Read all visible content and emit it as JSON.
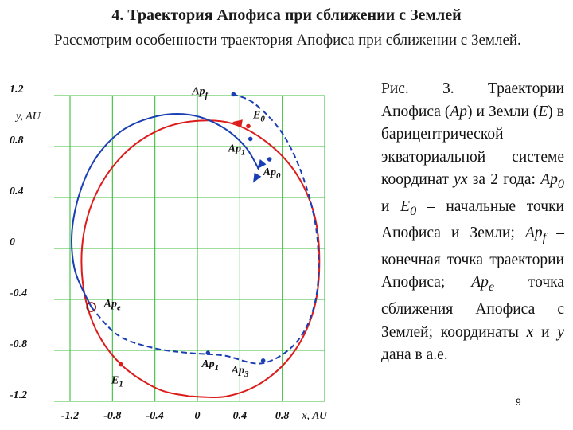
{
  "slide": {
    "title": "4. Траектория Апофиса при сближении с Землей",
    "subtitle": "Рассмотрим особенности траектория Апофиса при сближении с Землей.",
    "page_number": "9"
  },
  "caption": {
    "parts": [
      {
        "t": "Рис. 3. Траектории Апофиса ("
      },
      {
        "t": "Ap",
        "i": true
      },
      {
        "t": ") и Земли ("
      },
      {
        "t": "E",
        "i": true
      },
      {
        "t": ") в барицентрической экваториальной системе координат "
      },
      {
        "t": "yx",
        "i": true
      },
      {
        "t": " за 2 года: "
      },
      {
        "t": "Ap",
        "i": true
      },
      {
        "t": "0",
        "i": true,
        "sub": true
      },
      {
        "t": " и "
      },
      {
        "t": "E",
        "i": true
      },
      {
        "t": "0",
        "i": true,
        "sub": true
      },
      {
        "t": " – начальные точки Апофиса и Земли; "
      },
      {
        "t": "Ap",
        "i": true
      },
      {
        "t": "f",
        "i": true,
        "sub": true
      },
      {
        "t": " – конечная точка траектории Апофиса; "
      },
      {
        "t": "Ap",
        "i": true
      },
      {
        "t": "e",
        "i": true,
        "sub": true
      },
      {
        "t": " –точка сближения Апофиса с Землей; координаты "
      },
      {
        "t": "x",
        "i": true
      },
      {
        "t": " и "
      },
      {
        "t": "y",
        "i": true
      },
      {
        "t": " дана в а.е."
      }
    ]
  },
  "chart_data": {
    "type": "line",
    "xlabel": "x, AU",
    "ylabel": "y, AU",
    "xlim": [
      -1.2,
      1.2
    ],
    "ylim": [
      -1.2,
      1.2
    ],
    "grid": true,
    "x_ticks": [
      "-1.2",
      "-0.8",
      "-0.4",
      "0",
      "0.4",
      "0.8"
    ],
    "y_ticks": [
      "1.2",
      "0.8",
      "0.4",
      "0",
      "-0.4",
      "-0.8",
      "-1.2"
    ],
    "colors": {
      "earth": "#dd1c1c",
      "apophis": "#1a3fb5",
      "grid": "#3cbf3c"
    },
    "series": [
      {
        "name": "E",
        "style": "solid",
        "color": "#dd1c1c",
        "points": [
          [
            -0.08,
            -1.16
          ],
          [
            0.28,
            -1.16
          ],
          [
            0.63,
            -1.04
          ],
          [
            0.92,
            -0.8
          ],
          [
            1.1,
            -0.47
          ],
          [
            1.15,
            -0.1
          ],
          [
            1.1,
            0.27
          ],
          [
            0.93,
            0.59
          ],
          [
            0.66,
            0.83
          ],
          [
            0.33,
            0.98
          ],
          [
            -0.02,
            1.0
          ],
          [
            -0.36,
            0.93
          ],
          [
            -0.68,
            0.75
          ],
          [
            -0.93,
            0.47
          ],
          [
            -1.07,
            0.12
          ],
          [
            -1.08,
            -0.27
          ],
          [
            -0.96,
            -0.63
          ],
          [
            -0.72,
            -0.91
          ],
          [
            -0.38,
            -1.1
          ],
          [
            -0.08,
            -1.16
          ]
        ]
      },
      {
        "name": "Ap",
        "style": "solid",
        "color": "#1a3fb5",
        "points": [
          [
            0.58,
            0.62
          ],
          [
            0.45,
            0.8
          ],
          [
            0.22,
            0.96
          ],
          [
            -0.08,
            1.05
          ],
          [
            -0.42,
            1.03
          ],
          [
            -0.75,
            0.9
          ],
          [
            -1.02,
            0.62
          ],
          [
            -1.17,
            0.22
          ],
          [
            -1.16,
            -0.15
          ],
          [
            -1.0,
            -0.46
          ]
        ]
      },
      {
        "name": "Ap",
        "style": "dashed",
        "color": "#1a3fb5",
        "points": [
          [
            -1.0,
            -0.46
          ],
          [
            -0.75,
            -0.68
          ],
          [
            -0.42,
            -0.78
          ],
          [
            -0.08,
            -0.82
          ],
          [
            0.25,
            -0.84
          ],
          [
            0.62,
            -0.9
          ],
          [
            0.95,
            -0.72
          ],
          [
            1.12,
            -0.38
          ],
          [
            1.13,
            0.08
          ],
          [
            1.02,
            0.5
          ],
          [
            0.82,
            0.88
          ],
          [
            0.55,
            1.13
          ],
          [
            0.34,
            1.21
          ]
        ]
      }
    ],
    "points": [
      {
        "label": "Apf",
        "base": "Ap",
        "sub": "f",
        "x": 0.34,
        "y": 1.21,
        "color": "#1a3fb5"
      },
      {
        "label": "E0",
        "base": "E",
        "sub": "0",
        "x": 0.48,
        "y": 0.96,
        "color": "#dd1c1c"
      },
      {
        "label": "Ap1",
        "base": "Ap",
        "sub": "1",
        "x": 0.5,
        "y": 0.86,
        "color": "#1a3fb5"
      },
      {
        "label": "Ap0",
        "base": "Ap",
        "sub": "0",
        "x": 0.68,
        "y": 0.7,
        "color": "#1a3fb5"
      },
      {
        "label": "Ape",
        "base": "Ap",
        "sub": "e",
        "x": -1.0,
        "y": -0.46,
        "color": "#dd1c1c"
      },
      {
        "label": "Ap1",
        "base": "Ap",
        "sub": "1",
        "x": 0.1,
        "y": -0.82,
        "color": "#1a3fb5"
      },
      {
        "label": "Ap3",
        "base": "Ap",
        "sub": "3",
        "x": 0.62,
        "y": -0.88,
        "color": "#1a3fb5"
      },
      {
        "label": "E1",
        "base": "E",
        "sub": "1",
        "x": -0.72,
        "y": -0.91,
        "color": "#dd1c1c"
      }
    ]
  }
}
